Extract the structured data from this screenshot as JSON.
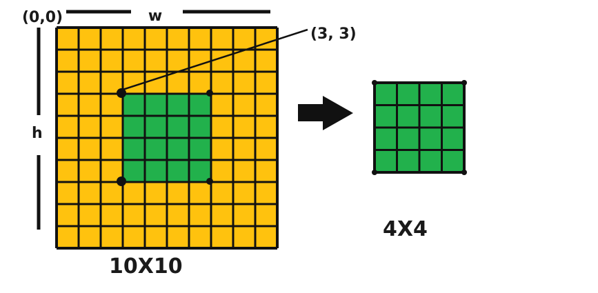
{
  "labels": {
    "origin": "(0,0)",
    "width": "w",
    "height": "h",
    "point": "(3, 3)",
    "big_size": "10X10",
    "small_size": "4X4"
  },
  "grid": {
    "big_rows": 10,
    "big_cols": 10,
    "crop_row": 3,
    "crop_col": 3,
    "crop_size": 4,
    "small_rows": 4,
    "small_cols": 4
  },
  "colors": {
    "yellow": "#FFC20E",
    "green": "#22B14C",
    "line": "#111111"
  },
  "icons": {
    "arrow": "arrow-right-icon"
  }
}
